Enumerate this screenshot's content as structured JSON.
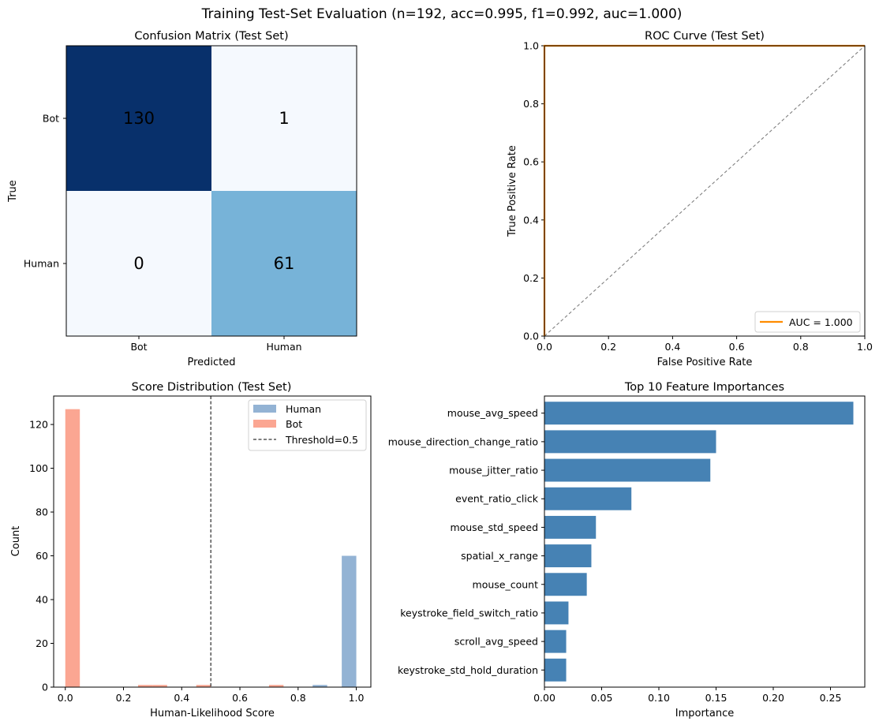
{
  "figure": {
    "suptitle": "Training Test-Set Evaluation  (n=192, acc=0.995, f1=0.992, auc=1.000)"
  },
  "colors": {
    "cm_high": "#08306b",
    "cm_mid": "#77b3d8",
    "cm_low": "#f5f9fe",
    "roc_line": "#ff8c00",
    "diagonal": "#808080",
    "human": "#6f99c6",
    "bot": "#fa8064",
    "feature_bar": "#4682b4"
  },
  "chart_data": [
    {
      "type": "heatmap",
      "title": "Confusion Matrix (Test Set)",
      "xlabel": "Predicted",
      "ylabel": "True",
      "x_categories": [
        "Bot",
        "Human"
      ],
      "y_categories": [
        "Bot",
        "Human"
      ],
      "values": [
        [
          130,
          1
        ],
        [
          0,
          61
        ]
      ],
      "cell_labels": [
        [
          "130",
          "1"
        ],
        [
          "0",
          "61"
        ]
      ]
    },
    {
      "type": "line",
      "title": "ROC Curve (Test Set)",
      "xlabel": "False Positive Rate",
      "ylabel": "True Positive Rate",
      "xlim": [
        0,
        1
      ],
      "ylim": [
        0,
        1
      ],
      "xticks": [
        "0.0",
        "0.2",
        "0.4",
        "0.6",
        "0.8",
        "1.0"
      ],
      "yticks": [
        "0.0",
        "0.2",
        "0.4",
        "0.6",
        "0.8",
        "1.0"
      ],
      "series": [
        {
          "name": "AUC = 1.000",
          "x": [
            0,
            0,
            1
          ],
          "y": [
            0,
            1,
            1
          ]
        }
      ],
      "reference_line": {
        "x": [
          0,
          1
        ],
        "y": [
          0,
          1
        ],
        "style": "dashed"
      },
      "legend_position": "lower-right",
      "grid": false
    },
    {
      "type": "bar",
      "subtype": "histogram",
      "title": "Score Distribution (Test Set)",
      "xlabel": "Human-Likelihood Score",
      "ylabel": "Count",
      "xlim": [
        -0.04,
        1.05
      ],
      "ylim": [
        0,
        133
      ],
      "xticks": [
        "0.0",
        "0.2",
        "0.4",
        "0.6",
        "0.8",
        "1.0"
      ],
      "yticks": [
        "0",
        "20",
        "40",
        "60",
        "80",
        "100",
        "120"
      ],
      "bin_width": 0.05,
      "series": [
        {
          "name": "Human",
          "bins": [
            [
              0.85,
              1
            ],
            [
              0.95,
              60
            ]
          ]
        },
        {
          "name": "Bot",
          "bins": [
            [
              0.0,
              127
            ],
            [
              0.25,
              1
            ],
            [
              0.3,
              1
            ],
            [
              0.45,
              1
            ],
            [
              0.7,
              1
            ]
          ]
        }
      ],
      "threshold": {
        "label": "Threshold=0.5",
        "x": 0.5
      },
      "legend_position": "upper-right",
      "grid": false
    },
    {
      "type": "bar",
      "orientation": "horizontal",
      "title": "Top 10 Feature Importances",
      "xlabel": "Importance",
      "ylabel": "",
      "xlim": [
        0,
        0.28
      ],
      "xticks": [
        "0.00",
        "0.05",
        "0.10",
        "0.15",
        "0.20",
        "0.25"
      ],
      "categories": [
        "mouse_avg_speed",
        "mouse_direction_change_ratio",
        "mouse_jitter_ratio",
        "event_ratio_click",
        "mouse_std_speed",
        "spatial_x_range",
        "mouse_count",
        "keystroke_field_switch_ratio",
        "scroll_avg_speed",
        "keystroke_std_hold_duration"
      ],
      "values": [
        0.27,
        0.15,
        0.145,
        0.076,
        0.045,
        0.041,
        0.037,
        0.021,
        0.019,
        0.019
      ]
    }
  ]
}
